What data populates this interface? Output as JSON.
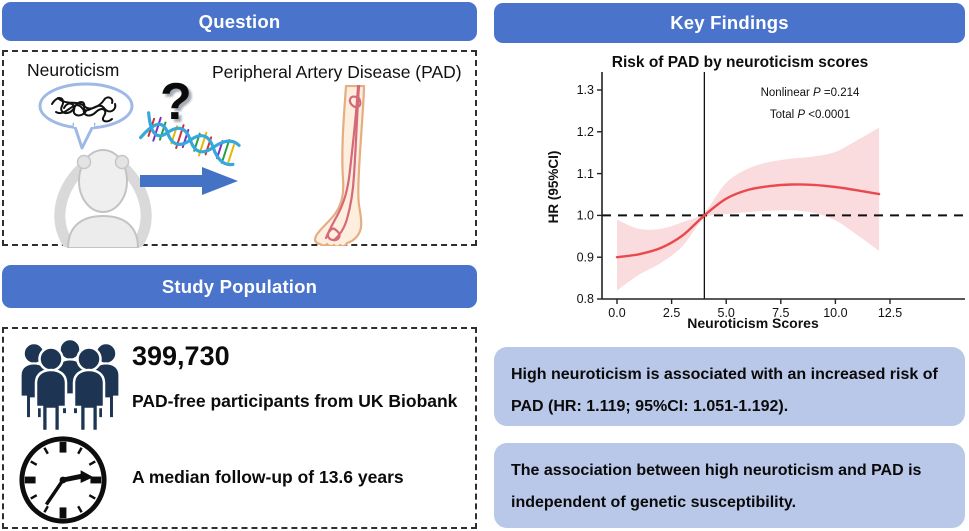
{
  "colors": {
    "header_blue": "#4a74cb",
    "finding_panel_blue": "#b9c7e9",
    "people_icon_navy": "#1d3552",
    "arrow_blue": "#4472c4",
    "hr_curve_red": "#e9494d",
    "ci_band_pink": "#fbdcde",
    "bubble_outline_blue": "#9fb9e6",
    "leg_skin": "#fdeede",
    "leg_outline": "#e5ad82",
    "artery_pink": "#d4697a"
  },
  "left": {
    "question_panel": {
      "header": "Question",
      "neuroticism_label": "Neuroticism",
      "question_mark": "?",
      "pad_label": "Peripheral Artery Disease (PAD)"
    },
    "study_population_panel": {
      "header": "Study Population",
      "participant_count": "399,730",
      "participant_caption": "PAD-free participants from UK Biobank",
      "followup_text": "A median follow-up of 13.6 years"
    }
  },
  "right": {
    "header": "Key Findings",
    "finding_1": "High neuroticism is associated with an increased risk of PAD (HR: 1.119; 95%CI: 1.051-1.192).",
    "finding_2": "The association between high neuroticism and PAD is independent of genetic susceptibility."
  },
  "chart_data": {
    "type": "line",
    "title": "Risk of PAD by neuroticism scores",
    "xlabel": "Neuroticism Scores",
    "ylabel": "HR (95%CI)",
    "xlim": [
      -0.7,
      13.2
    ],
    "ylim": [
      0.8,
      1.335
    ],
    "grid": false,
    "x_ticks": [
      0.0,
      2.5,
      5.0,
      7.5,
      10.0,
      12.5
    ],
    "x_tick_labels": [
      "0.0",
      "2.5",
      "5.0",
      "7.5",
      "10.0",
      "12.5"
    ],
    "y_ticks": [
      0.8,
      0.9,
      1.0,
      1.1,
      1.2,
      1.3
    ],
    "y_tick_labels": [
      "0.8",
      "0.9",
      "1.0",
      "1.1",
      "1.2",
      "1.3"
    ],
    "reference_hline_y": 1.0,
    "reference_vline_x": 4.0,
    "annotations": [
      {
        "pre": "Nonlinear ",
        "italic": "P",
        "post": " =0.214"
      },
      {
        "pre": "Total ",
        "italic": "P",
        "post": " <0.0001"
      }
    ],
    "series": [
      {
        "name": "HR spline",
        "x": [
          0,
          1,
          2,
          3,
          4,
          5,
          6,
          7,
          8,
          9,
          10,
          11,
          12
        ],
        "y": [
          0.9,
          0.907,
          0.922,
          0.952,
          1.0,
          1.04,
          1.061,
          1.07,
          1.074,
          1.073,
          1.068,
          1.06,
          1.051
        ]
      }
    ],
    "confidence_band": {
      "x": [
        0,
        1,
        2,
        3,
        4,
        5,
        6,
        7,
        8,
        9,
        10,
        11,
        12
      ],
      "lower": [
        0.82,
        0.858,
        0.886,
        0.926,
        0.993,
        1.003,
        1.008,
        1.011,
        1.012,
        1.006,
        0.988,
        0.953,
        0.915
      ],
      "upper": [
        0.99,
        0.968,
        0.968,
        0.984,
        1.008,
        1.078,
        1.112,
        1.128,
        1.136,
        1.141,
        1.152,
        1.18,
        1.21
      ]
    }
  }
}
